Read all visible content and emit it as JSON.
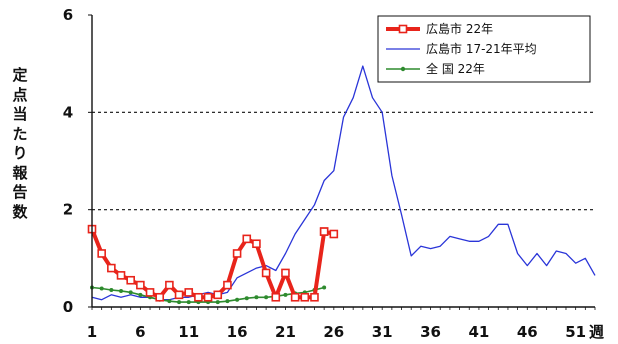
{
  "chart_data": {
    "type": "line",
    "title": "",
    "ylabel": "定点当たり報告数",
    "x_unit_label": "週",
    "xlim": [
      1,
      53
    ],
    "ylim": [
      0,
      6
    ],
    "y_ticks": [
      "0",
      "2",
      "4",
      "6"
    ],
    "x_ticks": [
      "1",
      "6",
      "11",
      "16",
      "21",
      "26",
      "31",
      "36",
      "41",
      "46",
      "51"
    ],
    "reference_lines": [
      2,
      4
    ],
    "legend_position": "top-right",
    "series": [
      {
        "name": "広島市 22年",
        "color": "#e8241b",
        "marker": "open-square",
        "x": [
          1,
          2,
          3,
          4,
          5,
          6,
          7,
          8,
          9,
          10,
          11,
          12,
          13,
          14,
          15,
          16,
          17,
          18,
          19,
          20,
          21,
          22,
          23,
          24,
          25
        ],
        "y": [
          1.6,
          1.1,
          0.8,
          0.65,
          0.55,
          0.45,
          0.3,
          0.2,
          0.45,
          0.25,
          0.3,
          0.2,
          0.2,
          0.25,
          0.45,
          1.1,
          1.4,
          1.3,
          0.7,
          0.2,
          0.7,
          0.2,
          0.2,
          0.2,
          1.55
        ]
      },
      {
        "name": "",
        "color": "#e8241b",
        "marker": "open-square",
        "x": [
          25,
          26
        ],
        "y": [
          1.55,
          1.5
        ]
      },
      {
        "name": "広島市 17-21年平均",
        "color": "#2a35d8",
        "marker": "none",
        "x": [
          1,
          2,
          3,
          4,
          5,
          6,
          7,
          8,
          9,
          10,
          11,
          12,
          13,
          14,
          15,
          16,
          17,
          18,
          19,
          20,
          21,
          22,
          23,
          24,
          25,
          26,
          27,
          28,
          29,
          30,
          31,
          32,
          33,
          34,
          35,
          36,
          37,
          38,
          39,
          40,
          41,
          42,
          43,
          44,
          45,
          46,
          47,
          48,
          49,
          50,
          51,
          52,
          53
        ],
        "y": [
          0.2,
          0.15,
          0.25,
          0.2,
          0.25,
          0.2,
          0.2,
          0.15,
          0.15,
          0.2,
          0.2,
          0.25,
          0.3,
          0.25,
          0.3,
          0.6,
          0.7,
          0.8,
          0.85,
          0.75,
          1.1,
          1.5,
          1.8,
          2.1,
          2.6,
          2.8,
          3.9,
          4.3,
          4.95,
          4.3,
          4.0,
          2.7,
          1.9,
          1.05,
          1.25,
          1.2,
          1.25,
          1.45,
          1.4,
          1.35,
          1.35,
          1.45,
          1.7,
          1.7,
          1.1,
          0.85,
          1.1,
          0.85,
          1.15,
          1.1,
          0.9,
          1.0,
          0.65
        ]
      },
      {
        "name": "全 国 22年",
        "color": "#2e8b2e",
        "marker": "dot",
        "x": [
          1,
          2,
          3,
          4,
          5,
          6,
          7,
          8,
          9,
          10,
          11,
          12,
          13,
          14,
          15,
          16,
          17,
          18,
          19,
          20,
          21,
          22,
          23,
          24,
          25
        ],
        "y": [
          0.4,
          0.38,
          0.35,
          0.33,
          0.3,
          0.25,
          0.2,
          0.15,
          0.12,
          0.1,
          0.1,
          0.1,
          0.1,
          0.1,
          0.12,
          0.15,
          0.18,
          0.2,
          0.2,
          0.22,
          0.25,
          0.28,
          0.3,
          0.35,
          0.4
        ]
      }
    ]
  }
}
